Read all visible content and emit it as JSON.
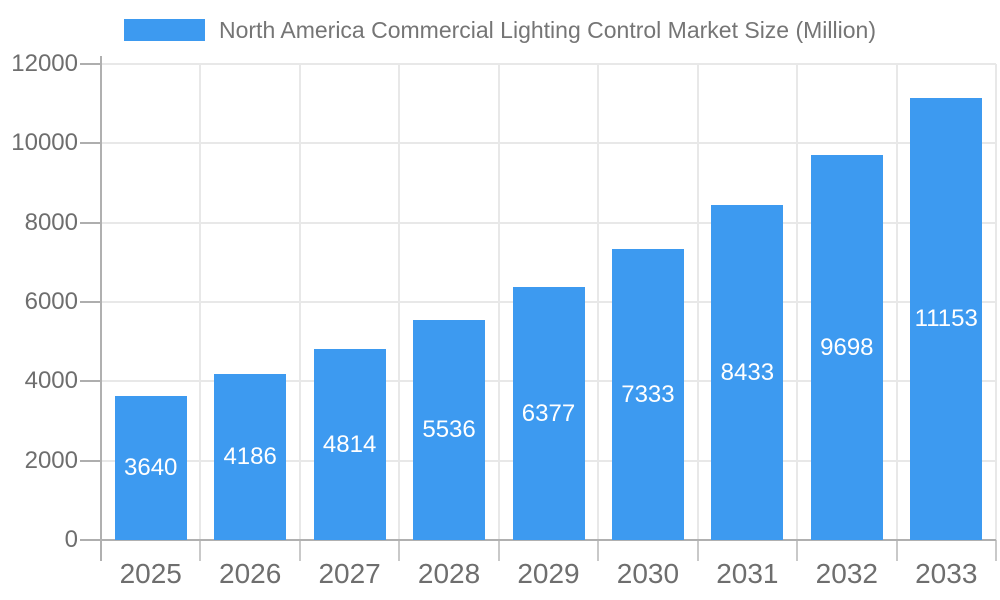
{
  "chart_data": {
    "type": "bar",
    "title": "North America Commercial Lighting Control Market Size (Million)",
    "legend_position": "top",
    "categories": [
      "2025",
      "2026",
      "2027",
      "2028",
      "2029",
      "2030",
      "2031",
      "2032",
      "2033"
    ],
    "series": [
      {
        "name": "North America Commercial Lighting Control Market Size (Million)",
        "values": [
          3640,
          4186,
          4814,
          5536,
          6377,
          7333,
          8433,
          9698,
          11153
        ]
      }
    ],
    "xlabel": "",
    "ylabel": "",
    "ylim": [
      0,
      12000
    ],
    "y_ticks": [
      0,
      2000,
      4000,
      6000,
      8000,
      10000,
      12000
    ],
    "grid": "horizontal and vertical light gridlines",
    "value_labels": "white, centered inside bars",
    "colors": {
      "bar": "#3d9af0",
      "grid_line": "#e8e8e8",
      "axis_line": "#b0b0b0",
      "y_tick_mark": "#aeaeae",
      "x_tick_mark": "#c9c9c9",
      "tick_label": "#6e6e6e",
      "legend_text": "#757575",
      "value_label": "#ffffff",
      "background": "#ffffff"
    }
  }
}
